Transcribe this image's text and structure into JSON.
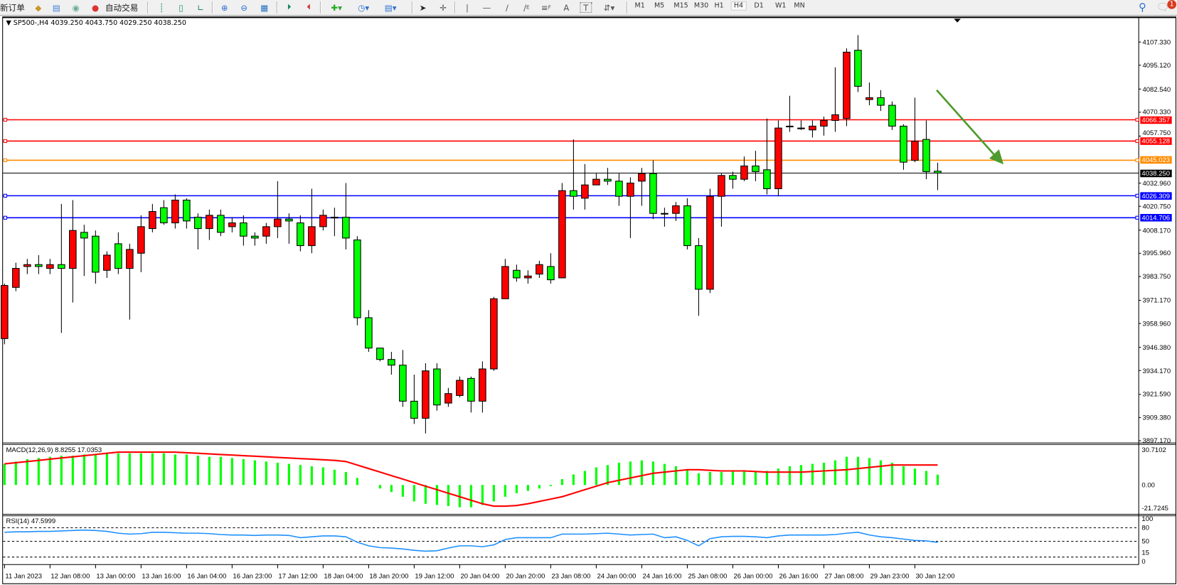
{
  "toolbar": {
    "new_order": "新订单",
    "auto_trading": "自动交易",
    "periods": [
      "M1",
      "M5",
      "M15",
      "M30",
      "H1",
      "H4",
      "D1",
      "W1",
      "MN"
    ],
    "selected_period": "H4",
    "text_tool": "A",
    "label_tool": "T",
    "channel_tool_suffix": "E",
    "fib_tool_suffix": "F",
    "notification_count": "1"
  },
  "chart": {
    "symbol": "SP500-,H4",
    "ohlc": "4039.250 4043.750 4029.250 4038.250",
    "macd_label": "MACD(12,26,9) 8.8255 17.0353",
    "rsi_label": "RSI(14) 47.5999"
  },
  "colors": {
    "bull": "#ff0000",
    "bear": "#00ff00",
    "macd_hist": "#00ff00",
    "macd_signal": "#ff0000",
    "rsi": "#1e90ff",
    "arrow": "#4f9a2c"
  },
  "chart_data": [
    {
      "type": "candlestick",
      "ylim": [
        3897.17,
        4107.33
      ],
      "y_ticks": [
        "4107.330",
        "4095.120",
        "4082.540",
        "4070.330",
        "4057.750",
        "4032.960",
        "4020.750",
        "4008.170",
        "3995.960",
        "3983.750",
        "3971.170",
        "3958.960",
        "3946.380",
        "3934.170",
        "3921.590",
        "3909.380",
        "3897.170"
      ],
      "x_ticks": [
        {
          "label": "11 Jan 2023",
          "candle": 0
        },
        {
          "label": "12 Jan 08:00",
          "candle": 4
        },
        {
          "label": "13 Jan 00:00",
          "candle": 8
        },
        {
          "label": "13 Jan 16:00",
          "candle": 12
        },
        {
          "label": "16 Jan 04:00",
          "candle": 16
        },
        {
          "label": "16 Jan 23:00",
          "candle": 20
        },
        {
          "label": "17 Jan 12:00",
          "candle": 24
        },
        {
          "label": "18 Jan 04:00",
          "candle": 28
        },
        {
          "label": "18 Jan 20:00",
          "candle": 32
        },
        {
          "label": "19 Jan 12:00",
          "candle": 36
        },
        {
          "label": "20 Jan 04:00",
          "candle": 40
        },
        {
          "label": "20 Jan 20:00",
          "candle": 44
        },
        {
          "label": "23 Jan 08:00",
          "candle": 48
        },
        {
          "label": "24 Jan 00:00",
          "candle": 52
        },
        {
          "label": "24 Jan 16:00",
          "candle": 56
        },
        {
          "label": "25 Jan 08:00",
          "candle": 60
        },
        {
          "label": "26 Jan 00:00",
          "candle": 64
        },
        {
          "label": "26 Jan 16:00",
          "candle": 68
        },
        {
          "label": "27 Jan 08:00",
          "candle": 72
        },
        {
          "label": "29 Jan 23:00",
          "candle": 76
        },
        {
          "label": "30 Jan 12:00",
          "candle": 80
        }
      ],
      "levels": [
        {
          "label": "4066.357",
          "price": 4066.357,
          "color": "#ff0000"
        },
        {
          "label": "4055.128",
          "price": 4055.128,
          "color": "#ff0000"
        },
        {
          "label": "4045.023",
          "price": 4045.023,
          "color": "#ff8c00"
        },
        {
          "label": "4026.309",
          "price": 4026.309,
          "color": "#0000ff"
        },
        {
          "label": "4014.706",
          "price": 4014.706,
          "color": "#0000ff"
        }
      ],
      "bid": {
        "label": "4038.250",
        "price": 4038.25,
        "color": "#000000"
      },
      "ohlc": [
        [
          3951,
          3980,
          3948,
          3979
        ],
        [
          3978,
          3991,
          3976,
          3988
        ],
        [
          3989,
          3993,
          3985,
          3990
        ],
        [
          3990,
          3995,
          3985,
          3989
        ],
        [
          3988,
          3993,
          3985,
          3990
        ],
        [
          3990,
          4022,
          3954,
          3988
        ],
        [
          3988,
          4024,
          3970,
          4008
        ],
        [
          4007,
          4011,
          3984,
          4004
        ],
        [
          4005,
          4008,
          3980,
          3986
        ],
        [
          3987,
          3997,
          3983,
          3995
        ],
        [
          4001,
          4007,
          3985,
          3988
        ],
        [
          3988,
          4001,
          3961,
          3998
        ],
        [
          3996,
          4016,
          3986,
          4010
        ],
        [
          4009,
          4022,
          4007,
          4018
        ],
        [
          4020,
          4024,
          4011,
          4012
        ],
        [
          4012,
          4027,
          4009,
          4024
        ],
        [
          4024,
          4025,
          4009,
          4013
        ],
        [
          4015,
          4017,
          3998,
          4009
        ],
        [
          4009,
          4019,
          4003,
          4016
        ],
        [
          4016,
          4019,
          4005,
          4007
        ],
        [
          4010,
          4015,
          4007,
          4012
        ],
        [
          4012,
          4016,
          4000,
          4005
        ],
        [
          4005,
          4007,
          4000,
          4004
        ],
        [
          4005,
          4012,
          4001,
          4010
        ],
        [
          4010,
          4034,
          4004,
          4014
        ],
        [
          4014,
          4017,
          4001,
          4013
        ],
        [
          4012,
          4016,
          3997,
          4000
        ],
        [
          4000,
          4030,
          3996,
          4010
        ],
        [
          4010,
          4019,
          4008,
          4016
        ],
        [
          4015,
          4020,
          4005,
          4015
        ],
        [
          4015,
          4033,
          3998,
          4004
        ],
        [
          4003,
          4005,
          3958,
          3962
        ],
        [
          3962,
          3966,
          3944,
          3946
        ],
        [
          3946,
          3946,
          3939,
          3940
        ],
        [
          3940,
          3944,
          3932,
          3937
        ],
        [
          3937,
          3945,
          3915,
          3918
        ],
        [
          3918,
          3932,
          3906,
          3909
        ],
        [
          3909,
          3938,
          3901,
          3934
        ],
        [
          3935,
          3938,
          3913,
          3916
        ],
        [
          3917,
          3925,
          3915,
          3922
        ],
        [
          3921,
          3931,
          3920,
          3929
        ],
        [
          3930,
          3931,
          3912,
          3918
        ],
        [
          3918,
          3939,
          3912,
          3935
        ],
        [
          3935,
          3973,
          3934,
          3972
        ],
        [
          3972,
          3993,
          3972,
          3989
        ],
        [
          3987,
          3990,
          3981,
          3983
        ],
        [
          3983,
          3987,
          3980,
          3984
        ],
        [
          3985,
          3992,
          3983,
          3990
        ],
        [
          3989,
          3996,
          3980,
          3982
        ],
        [
          3983,
          4033,
          3983,
          4029
        ],
        [
          4029,
          4056,
          4019,
          4026
        ],
        [
          4025,
          4043,
          4019,
          4032
        ],
        [
          4032,
          4038,
          4032,
          4035
        ],
        [
          4035,
          4041,
          4032,
          4034
        ],
        [
          4034,
          4038,
          4021,
          4026
        ],
        [
          4026,
          4036,
          4004,
          4033
        ],
        [
          4034,
          4041,
          4021,
          4038
        ],
        [
          4038,
          4045,
          4014,
          4017
        ],
        [
          4017,
          4020,
          4010,
          4017
        ],
        [
          4017,
          4023,
          4013,
          4021
        ],
        [
          4021,
          4025,
          3998,
          4000
        ],
        [
          4000,
          4004,
          3963,
          3977
        ],
        [
          3977,
          4030,
          3975,
          4026
        ],
        [
          4026,
          4038,
          4010,
          4037
        ],
        [
          4037,
          4039,
          4030,
          4035
        ],
        [
          4035,
          4047,
          4034,
          4042
        ],
        [
          4042,
          4050,
          4034,
          4039
        ],
        [
          4040,
          4067,
          4027,
          4030
        ],
        [
          4030,
          4066,
          4026,
          4062
        ],
        [
          4063,
          4079,
          4060,
          4063
        ],
        [
          4062,
          4066,
          4061,
          4062
        ],
        [
          4061,
          4066,
          4057,
          4063
        ],
        [
          4063,
          4068,
          4058,
          4066
        ],
        [
          4066,
          4094,
          4060,
          4069
        ],
        [
          4067,
          4104,
          4063,
          4102
        ],
        [
          4103,
          4111,
          4081,
          4084
        ],
        [
          4077,
          4086,
          4074,
          4078
        ],
        [
          4078,
          4082,
          4071,
          4074
        ],
        [
          4074,
          4076,
          4061,
          4063
        ],
        [
          4063,
          4064,
          4040,
          4044
        ],
        [
          4045,
          4078,
          4044,
          4055
        ],
        [
          4056,
          4066,
          4035,
          4039
        ],
        [
          4039.25,
          4043.75,
          4029.25,
          4038.25
        ]
      ]
    },
    {
      "type": "bar",
      "name": "MACD(12,26,9)",
      "ylim": [
        -21.7245,
        30.7102
      ],
      "y_ticks": [
        "30.7102",
        "0.00",
        "-21.7245"
      ],
      "histogram": [
        18,
        20,
        22,
        23,
        24,
        25,
        25,
        26,
        26,
        27,
        27,
        27,
        27,
        27,
        27,
        26,
        26,
        25,
        24,
        24,
        23,
        22,
        21,
        20,
        19,
        18,
        17,
        16,
        15,
        13,
        11,
        6,
        0,
        -3,
        -6,
        -10,
        -14,
        -16,
        -17,
        -18,
        -19,
        -19,
        -17,
        -14,
        -10,
        -7,
        -5,
        -3,
        -1,
        5,
        9,
        12,
        15,
        17,
        19,
        20,
        21,
        20,
        18,
        16,
        13,
        10,
        11,
        11,
        12,
        12,
        12,
        12,
        14,
        16,
        17,
        18,
        19,
        21,
        24,
        24,
        23,
        21,
        19,
        16,
        14,
        12,
        8.8255
      ],
      "signal": [
        18,
        19,
        20,
        21,
        22,
        23,
        24,
        25,
        26,
        27,
        28,
        28,
        28,
        28,
        28,
        28,
        27.5,
        27,
        26.5,
        26,
        25.5,
        25,
        24.5,
        24,
        23.5,
        23,
        22.5,
        22,
        21.5,
        21,
        20,
        17,
        14,
        11,
        8,
        5,
        2,
        -1,
        -4,
        -7,
        -10,
        -13,
        -16,
        -18,
        -18,
        -17.5,
        -16,
        -14,
        -12,
        -10,
        -7,
        -4,
        -1,
        2,
        4,
        6,
        8,
        10,
        11,
        12,
        13,
        13,
        12.5,
        12,
        12,
        12,
        11.5,
        11,
        11,
        11,
        11,
        11.5,
        12,
        12.5,
        13,
        14,
        15,
        16,
        17,
        17,
        17,
        17,
        17.0353
      ]
    },
    {
      "type": "line",
      "name": "RSI(14)",
      "ylim": [
        0,
        100
      ],
      "y_ticks": [
        "100",
        "80",
        "50",
        "15",
        "0"
      ],
      "levels": [
        80,
        50,
        15
      ],
      "values": [
        70,
        71,
        71,
        72,
        72,
        73,
        74,
        75,
        74,
        72,
        68,
        66,
        67,
        70,
        70,
        69,
        68,
        68,
        67,
        65,
        64,
        64,
        63,
        64,
        64,
        63,
        58,
        60,
        62,
        62,
        60,
        48,
        40,
        36,
        35,
        33,
        30,
        28,
        29,
        35,
        40,
        40,
        38,
        42,
        54,
        58,
        58,
        58,
        58,
        66,
        66,
        66,
        67,
        68,
        66,
        64,
        65,
        66,
        58,
        60,
        52,
        40,
        56,
        60,
        61,
        61,
        60,
        58,
        62,
        64,
        64,
        64,
        64,
        65,
        68,
        70,
        64,
        60,
        58,
        55,
        52,
        51,
        47.5999
      ]
    }
  ]
}
